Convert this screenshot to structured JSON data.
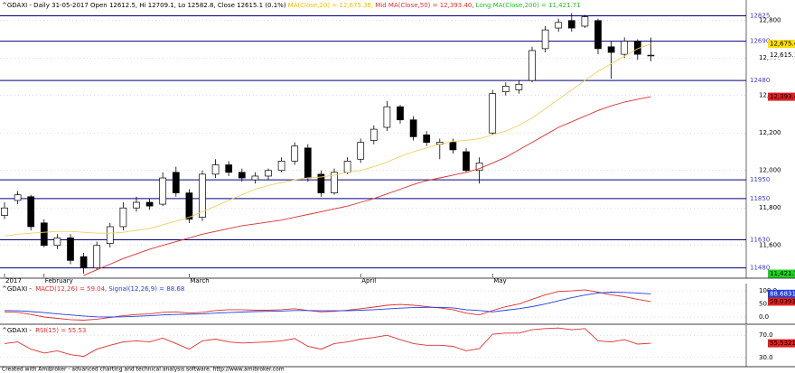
{
  "chart_data": [
    {
      "type": "candlestick",
      "title_items": [
        {
          "text": "^GDAXI - Daily 31-05-2017 Open 12612.5, Hi 12709.1, Lo 12582.8, Close 12615.1 (0.1%)",
          "color": "#000000"
        },
        {
          "text": "MA(Close,20) = 12,675.36,",
          "color": "#e6c200"
        },
        {
          "text": "Mid MA(Close,50) = 12,393.40,",
          "color": "#e03030"
        },
        {
          "text": "Long MA(Close,200) = 11,421.71",
          "color": "#20c020"
        }
      ],
      "categories": [
        "2017",
        null,
        null,
        "February",
        null,
        null,
        null,
        null,
        null,
        null,
        null,
        null,
        null,
        null,
        "March",
        null,
        null,
        null,
        null,
        null,
        null,
        null,
        null,
        null,
        null,
        null,
        null,
        "April",
        null,
        null,
        null,
        null,
        null,
        null,
        null,
        null,
        null,
        "May",
        null,
        null,
        null,
        null,
        null,
        null,
        null,
        null,
        null,
        null,
        null,
        null
      ],
      "open": [
        11760,
        11840,
        11860,
        11720,
        11600,
        11640,
        11540,
        11480,
        11610,
        11700,
        11800,
        11830,
        11820,
        11990,
        11880,
        11750,
        11980,
        12030,
        11990,
        11950,
        11970,
        12000,
        12050,
        12120,
        11980,
        11880,
        11990,
        12060,
        12160,
        12230,
        12340,
        12270,
        12190,
        12140,
        12150,
        12100,
        12000,
        12200,
        12420,
        12430,
        12480,
        12650,
        12760,
        12800,
        12770,
        12800,
        12660,
        12620,
        12690,
        12612.5
      ],
      "high": [
        11830,
        11890,
        11870,
        11740,
        11660,
        11660,
        11560,
        11620,
        11720,
        11830,
        11860,
        11850,
        11990,
        12020,
        11900,
        12000,
        12060,
        12050,
        12010,
        11990,
        12010,
        12070,
        12150,
        12140,
        12000,
        12010,
        12070,
        12170,
        12240,
        12370,
        12350,
        12290,
        12210,
        12170,
        12170,
        12120,
        12070,
        12430,
        12470,
        12480,
        12660,
        12770,
        12810,
        12840,
        12830,
        12810,
        12690,
        12710,
        12700,
        12709.1
      ],
      "low": [
        11740,
        11820,
        11680,
        11590,
        11580,
        11500,
        11450,
        11470,
        11590,
        11680,
        11780,
        11790,
        11810,
        11860,
        11720,
        11730,
        11960,
        11970,
        11940,
        11930,
        11950,
        11990,
        12030,
        11940,
        11860,
        11870,
        11980,
        12040,
        12140,
        12210,
        12250,
        12160,
        12130,
        12060,
        12090,
        11990,
        11930,
        12190,
        12400,
        12410,
        12470,
        12630,
        12740,
        12740,
        12760,
        12620,
        12490,
        12600,
        12590,
        12582.8
      ],
      "close": [
        11800,
        11870,
        11700,
        11600,
        11640,
        11520,
        11480,
        11600,
        11700,
        11800,
        11830,
        11810,
        11960,
        11880,
        11740,
        11980,
        12030,
        11990,
        11960,
        11970,
        12000,
        12050,
        12130,
        11960,
        11880,
        11990,
        12050,
        12150,
        12220,
        12340,
        12270,
        12180,
        12150,
        12150,
        12110,
        12000,
        12040,
        12410,
        12450,
        12460,
        12640,
        12750,
        12790,
        12760,
        12820,
        12650,
        12630,
        12690,
        12620,
        12615.1
      ],
      "series": [
        {
          "color": "#f0d060",
          "values": [
            11650,
            11660,
            11665,
            11670,
            11675,
            11675,
            11670,
            11665,
            11665,
            11670,
            11680,
            11690,
            11710,
            11730,
            11750,
            11780,
            11810,
            11840,
            11870,
            11900,
            11920,
            11935,
            11950,
            11960,
            11965,
            11975,
            11990,
            12000,
            12020,
            12045,
            12075,
            12100,
            12120,
            12140,
            12155,
            12160,
            12170,
            12190,
            12210,
            12240,
            12280,
            12330,
            12380,
            12430,
            12480,
            12530,
            12570,
            12610,
            12650,
            12675.36
          ]
        },
        {
          "color": "#e03030",
          "values": [
            null,
            null,
            null,
            null,
            null,
            null,
            11440,
            11470,
            11500,
            11530,
            11555,
            11580,
            11600,
            11620,
            11640,
            11660,
            11675,
            11690,
            11705,
            11715,
            11725,
            11735,
            11750,
            11765,
            11780,
            11795,
            11810,
            11830,
            11850,
            11875,
            11900,
            11925,
            11945,
            11960,
            11975,
            11990,
            12010,
            12040,
            12070,
            12110,
            12150,
            12190,
            12230,
            12260,
            12290,
            12320,
            12345,
            12365,
            12380,
            12393.4
          ]
        }
      ],
      "levels": [
        12825,
        12690,
        12480,
        11950,
        11850,
        11630,
        11480
      ],
      "ylim": [
        11430,
        12900
      ],
      "yticks": [
        {
          "value": 12800,
          "label": "12,800"
        },
        {
          "value": 12600,
          "label": "12,600"
        },
        {
          "value": 12400,
          "label": "12,400"
        },
        {
          "value": 12200,
          "label": "12,200"
        },
        {
          "value": 12000,
          "label": "12,000"
        },
        {
          "value": 11800,
          "label": "11,800"
        },
        {
          "value": 11600,
          "label": "11,600"
        }
      ],
      "badges": [
        {
          "value": 12675.36,
          "label": "12,675.4",
          "bg": "#ffe000",
          "fg": "#000000"
        },
        {
          "value": 12615.1,
          "label": "12,615.1",
          "bg": "#ffffff",
          "fg": "#000000"
        },
        {
          "value": 12393.4,
          "label": "12,393.40",
          "bg": "#e02020",
          "fg": "#000000"
        },
        {
          "value": 11421.71,
          "label": "11,421.71",
          "bg": "#20d020",
          "fg": "#000000"
        }
      ]
    },
    {
      "type": "line",
      "title_items": [
        {
          "text": "^GDAXI - ",
          "color": "#000000"
        },
        {
          "text": "MACD(12,26) = 59.04,",
          "color": "#e03030"
        },
        {
          "text": "Signal(12,26,9) = 88.68",
          "color": "#2040e0"
        }
      ],
      "series": [
        {
          "color": "#e03030",
          "values": [
            20,
            18,
            10,
            0,
            -5,
            -10,
            -12,
            -8,
            -2,
            5,
            10,
            12,
            18,
            20,
            15,
            18,
            25,
            28,
            28,
            26,
            26,
            28,
            32,
            25,
            20,
            22,
            26,
            32,
            38,
            45,
            48,
            45,
            40,
            35,
            28,
            15,
            8,
            25,
            40,
            50,
            68,
            85,
            98,
            100,
            104,
            95,
            85,
            78,
            68,
            59.04
          ]
        },
        {
          "color": "#2040e0",
          "values": [
            25,
            24,
            21,
            17,
            12,
            8,
            4,
            1,
            0,
            1,
            3,
            5,
            8,
            10,
            11,
            12,
            15,
            17,
            19,
            21,
            22,
            23,
            25,
            25,
            24,
            24,
            24,
            26,
            28,
            31,
            34,
            36,
            37,
            37,
            35,
            28,
            25,
            20,
            26,
            32,
            40,
            50,
            62,
            74,
            84,
            92,
            95,
            94,
            92,
            88.68
          ]
        }
      ],
      "ylim": [
        -24,
        121
      ],
      "yticks": [
        {
          "value": 100,
          "label": "100.0"
        },
        {
          "value": 50,
          "label": "50.0"
        },
        {
          "value": 0,
          "label": "0.0"
        }
      ],
      "badges": [
        {
          "value": 88.6831,
          "label": "88.6831",
          "bg": "#2040e0",
          "fg": "#ffffff"
        },
        {
          "value": 59.0393,
          "label": "59.0393",
          "bg": "#e02020",
          "fg": "#000000"
        }
      ]
    },
    {
      "type": "line",
      "title_items": [
        {
          "text": "^GDAXI - ",
          "color": "#000000"
        },
        {
          "text": "RSI(15) = 55.53",
          "color": "#e03030"
        }
      ],
      "series": [
        {
          "color": "#e03030",
          "values": [
            55,
            58,
            45,
            38,
            42,
            35,
            32,
            45,
            52,
            58,
            60,
            58,
            65,
            55,
            45,
            60,
            63,
            58,
            56,
            57,
            58,
            60,
            64,
            50,
            45,
            55,
            58,
            63,
            66,
            70,
            62,
            55,
            52,
            52,
            50,
            42,
            46,
            72,
            74,
            74,
            80,
            82,
            83,
            80,
            82,
            60,
            58,
            62,
            54,
            55.53
          ]
        }
      ],
      "ylim": [
        15,
        85
      ],
      "yticks": [
        {
          "value": 70,
          "label": "70.0"
        },
        {
          "value": 30,
          "label": "30.0"
        }
      ],
      "badges": [
        {
          "value": 55.5321,
          "label": "55.5321",
          "bg": "#e02020",
          "fg": "#000000"
        }
      ]
    }
  ],
  "footer": "Created with AmiBroker - advanced charting and technical analysis software. http://www.amibroker.com"
}
